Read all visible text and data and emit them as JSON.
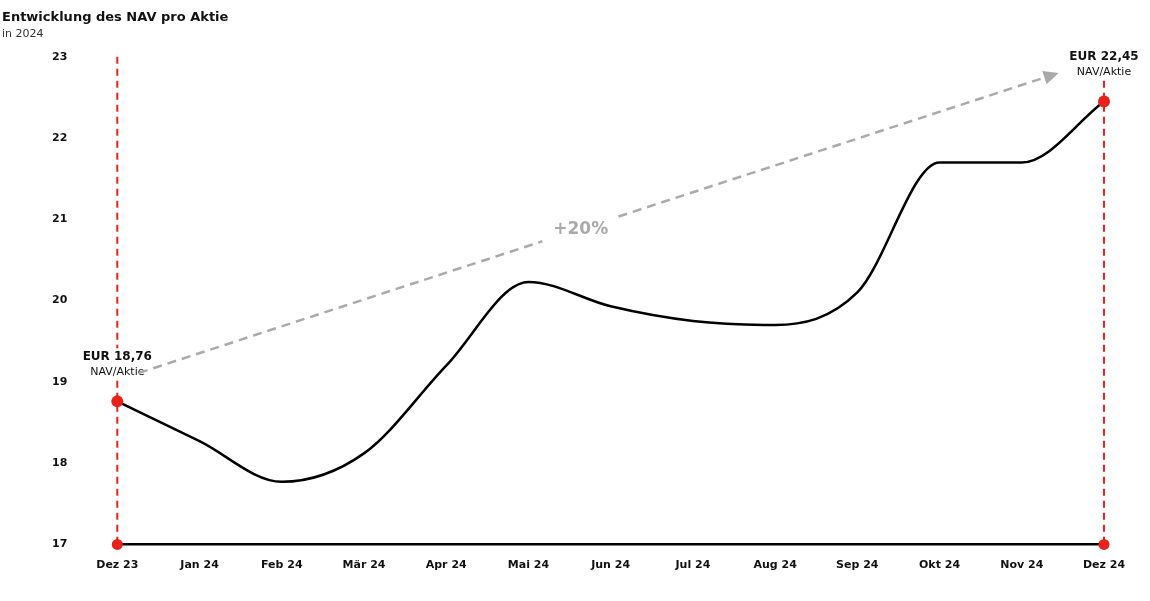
{
  "chart_data": {
    "type": "line",
    "title": "Entwicklung des NAV pro Aktie",
    "subtitle": "in 2024",
    "categories": [
      "Dez 23",
      "Jan 24",
      "Feb 24",
      "Mär 24",
      "Apr 24",
      "Mai 24",
      "Jun 24",
      "Jul 24",
      "Aug 24",
      "Sep 24",
      "Okt 24",
      "Nov 24",
      "Dez 24"
    ],
    "series": [
      {
        "color": "#000000",
        "values": [
          18.76,
          18.27,
          17.77,
          18.12,
          19.2,
          20.23,
          19.93,
          19.75,
          19.7,
          20.1,
          21.7,
          21.7,
          22.45
        ]
      }
    ],
    "ylim": [
      17,
      23
    ],
    "yticks": [
      17,
      18,
      19,
      20,
      21,
      22,
      23
    ],
    "grid": false,
    "legend": false,
    "marker": "none",
    "line_style": "solid",
    "ref_lines": [
      {
        "axis": "x",
        "value": "Dez 23",
        "color": "#e8221b",
        "line_style": "dashed"
      },
      {
        "axis": "x",
        "value": "Dez 24",
        "color": "#e8221b",
        "line_style": "dashed"
      }
    ],
    "annotations": [
      {
        "text": "EUR 18,76\nNAV/Aktie",
        "x": "Dez 23",
        "y": 18.76
      },
      {
        "text": "EUR 22,45\nNAV/Aktie",
        "x": "Dez 24",
        "y": 22.45
      },
      "+20%"
    ]
  }
}
